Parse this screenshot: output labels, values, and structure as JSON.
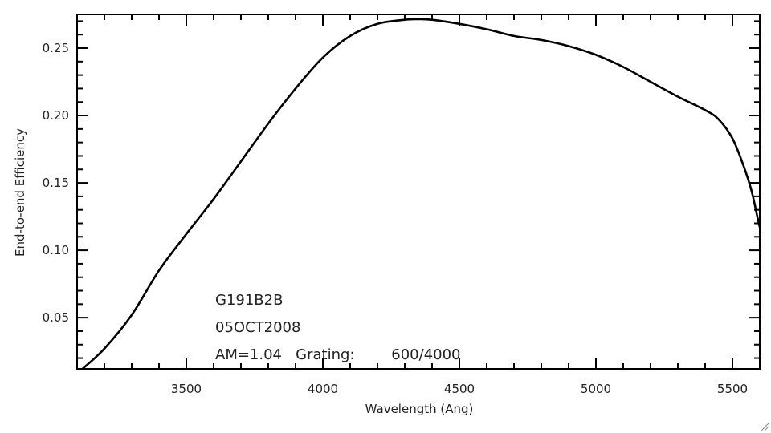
{
  "chart_data": {
    "type": "line",
    "title": "",
    "xlabel": "Wavelength (Ang)",
    "ylabel": "End-to-end Efficiency",
    "xlim": [
      3100,
      5600
    ],
    "ylim": [
      0.012,
      0.275
    ],
    "xticks": [
      3500,
      4000,
      4500,
      5000,
      5500
    ],
    "xtick_labels": [
      "3500",
      "4000",
      "4500",
      "5000",
      "5500"
    ],
    "yticks": [
      0.05,
      0.1,
      0.15,
      0.2,
      0.25
    ],
    "ytick_labels": [
      "0.05",
      "0.10",
      "0.15",
      "0.20",
      "0.25"
    ],
    "grid": false,
    "legend": "none",
    "annotations": [
      {
        "text": "G191B2B"
      },
      {
        "text": "05OCT2008"
      },
      {
        "text": "AM=1.04   Grating:        600/4000"
      }
    ],
    "series": [
      {
        "x": [
          3120,
          3200,
          3300,
          3400,
          3500,
          3600,
          3700,
          3800,
          3900,
          4000,
          4100,
          4200,
          4300,
          4350,
          4400,
          4500,
          4600,
          4700,
          4800,
          4900,
          5000,
          5100,
          5200,
          5300,
          5400,
          5450,
          5500,
          5540,
          5570,
          5590,
          5600
        ],
        "y": [
          0.012,
          0.027,
          0.052,
          0.085,
          0.112,
          0.138,
          0.166,
          0.194,
          0.22,
          0.243,
          0.259,
          0.268,
          0.271,
          0.2715,
          0.271,
          0.268,
          0.264,
          0.259,
          0.256,
          0.2515,
          0.245,
          0.236,
          0.225,
          0.214,
          0.204,
          0.197,
          0.183,
          0.163,
          0.144,
          0.126,
          0.117
        ],
        "color": "#000000"
      }
    ]
  }
}
